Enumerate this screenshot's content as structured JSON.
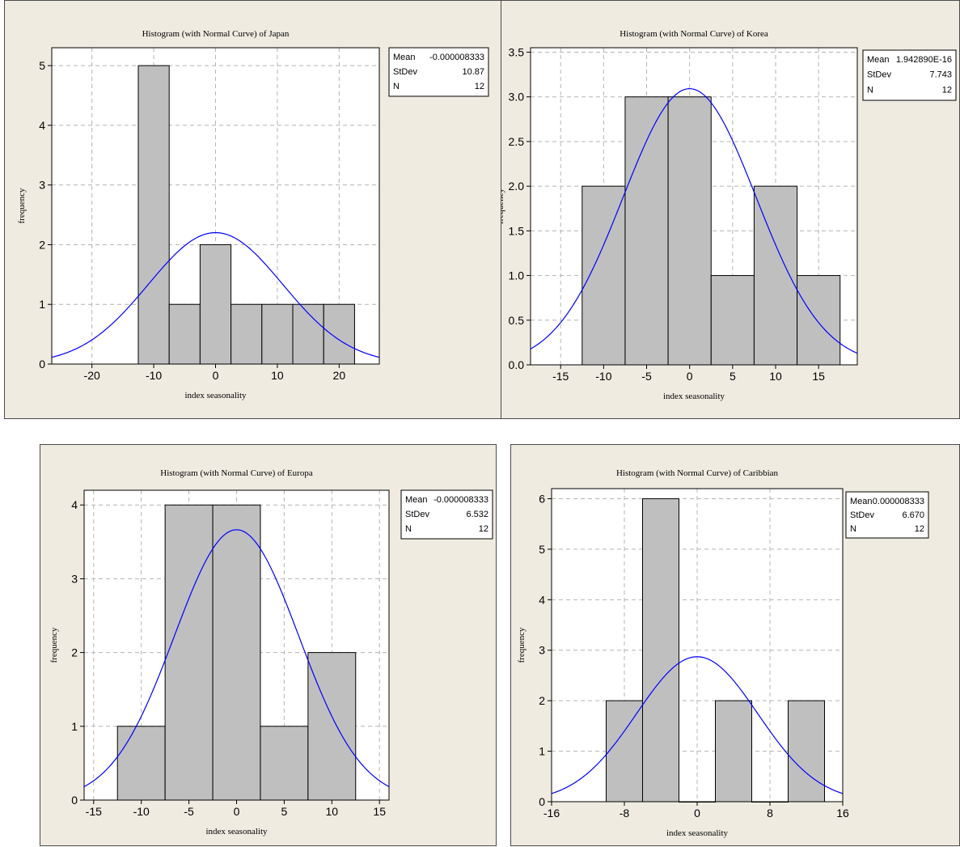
{
  "chart_data": [
    {
      "type": "bar",
      "title": "Histogram (with Normal Curve) of Japan",
      "xlabel": "index seasonality",
      "ylabel": "frequency",
      "xlim": [
        -26.5,
        26.5
      ],
      "ylim": [
        0,
        5.3
      ],
      "xticks": [
        -20,
        -10,
        0,
        10,
        20
      ],
      "yticks": [
        0,
        1,
        2,
        3,
        4,
        5
      ],
      "bins": [
        {
          "x0": -12.5,
          "x1": -7.5,
          "count": 5
        },
        {
          "x0": -7.5,
          "x1": -2.5,
          "count": 1
        },
        {
          "x0": -2.5,
          "x1": 2.5,
          "count": 2
        },
        {
          "x0": 2.5,
          "x1": 7.5,
          "count": 1
        },
        {
          "x0": 7.5,
          "x1": 12.5,
          "count": 1
        },
        {
          "x0": 12.5,
          "x1": 17.5,
          "count": 1
        },
        {
          "x0": 17.5,
          "x1": 22.5,
          "count": 1
        }
      ],
      "curve": {
        "mean": 0,
        "stdev": 10.87,
        "n": 12,
        "binwidth": 5
      },
      "stats": [
        {
          "label": "Mean",
          "value": "-0.000008333"
        },
        {
          "label": "StDev",
          "value": "10.87"
        },
        {
          "label": "N",
          "value": "12"
        }
      ],
      "grid": true,
      "legend_position": "top-right",
      "colors": {
        "bar": "#bfbfbf",
        "curve": "#0000ff",
        "grid": "#b4b4b4"
      }
    },
    {
      "type": "bar",
      "title": "Histogram (with Normal Curve) of Korea",
      "xlabel": "index seasonality",
      "ylabel": "frequency",
      "xlim": [
        -18.5,
        19.5
      ],
      "ylim": [
        0,
        3.55
      ],
      "xticks": [
        -15,
        -10,
        -5,
        0,
        5,
        10,
        15
      ],
      "yticks": [
        0.0,
        0.5,
        1.0,
        1.5,
        2.0,
        2.5,
        3.0,
        3.5
      ],
      "ytick_labels": [
        "0.0",
        "0.5",
        "1.0",
        "1.5",
        "2.0",
        "2.5",
        "3.0",
        "3.5"
      ],
      "bins": [
        {
          "x0": -12.5,
          "x1": -7.5,
          "count": 2
        },
        {
          "x0": -7.5,
          "x1": -2.5,
          "count": 3
        },
        {
          "x0": -2.5,
          "x1": 2.5,
          "count": 3
        },
        {
          "x0": 2.5,
          "x1": 7.5,
          "count": 1
        },
        {
          "x0": 7.5,
          "x1": 12.5,
          "count": 2
        },
        {
          "x0": 12.5,
          "x1": 17.5,
          "count": 1
        }
      ],
      "curve": {
        "mean": 0,
        "stdev": 7.743,
        "n": 12,
        "binwidth": 5
      },
      "stats": [
        {
          "label": "Mean",
          "value": "1.942890E-16"
        },
        {
          "label": "StDev",
          "value": "7.743"
        },
        {
          "label": "N",
          "value": "12"
        }
      ],
      "grid": true,
      "legend_position": "top-right",
      "colors": {
        "bar": "#bfbfbf",
        "curve": "#0000ff",
        "grid": "#b4b4b4"
      }
    },
    {
      "type": "bar",
      "title": "Histogram (with Normal Curve) of Europa",
      "xlabel": "index seasonality",
      "ylabel": "frequency",
      "xlim": [
        -16,
        16
      ],
      "ylim": [
        0,
        4.2
      ],
      "xticks": [
        -15,
        -10,
        -5,
        0,
        5,
        10,
        15
      ],
      "yticks": [
        0,
        1,
        2,
        3,
        4
      ],
      "bins": [
        {
          "x0": -12.5,
          "x1": -7.5,
          "count": 1
        },
        {
          "x0": -7.5,
          "x1": -2.5,
          "count": 4
        },
        {
          "x0": -2.5,
          "x1": 2.5,
          "count": 4
        },
        {
          "x0": 2.5,
          "x1": 7.5,
          "count": 1
        },
        {
          "x0": 7.5,
          "x1": 12.5,
          "count": 2
        }
      ],
      "curve": {
        "mean": 0,
        "stdev": 6.532,
        "n": 12,
        "binwidth": 5
      },
      "stats": [
        {
          "label": "Mean",
          "value": "-0.000008333"
        },
        {
          "label": "StDev",
          "value": "6.532"
        },
        {
          "label": "N",
          "value": "12"
        }
      ],
      "grid": true,
      "legend_position": "top-right",
      "colors": {
        "bar": "#bfbfbf",
        "curve": "#0000ff",
        "grid": "#b4b4b4"
      }
    },
    {
      "type": "bar",
      "title": "Histogram (with Normal Curve) of Caribbian",
      "xlabel": "index seasonality",
      "ylabel": "frequency",
      "xlim": [
        -16,
        16
      ],
      "ylim": [
        0,
        6.2
      ],
      "xticks": [
        -16,
        -8,
        0,
        8,
        16
      ],
      "yticks": [
        0,
        1,
        2,
        3,
        4,
        5,
        6
      ],
      "bins": [
        {
          "x0": -10,
          "x1": -6,
          "count": 2
        },
        {
          "x0": -6,
          "x1": -2,
          "count": 6
        },
        {
          "x0": -2,
          "x1": 2,
          "count": 0
        },
        {
          "x0": 2,
          "x1": 6,
          "count": 2
        },
        {
          "x0": 6,
          "x1": 10,
          "count": 0
        },
        {
          "x0": 10,
          "x1": 14,
          "count": 2
        }
      ],
      "curve": {
        "mean": 0,
        "stdev": 6.67,
        "n": 12,
        "binwidth": 4
      },
      "stats": [
        {
          "label": "Mean",
          "value": "0.000008333"
        },
        {
          "label": "StDev",
          "value": "6.670"
        },
        {
          "label": "N",
          "value": "12"
        }
      ],
      "grid": true,
      "legend_position": "top-right",
      "colors": {
        "bar": "#bfbfbf",
        "curve": "#0000ff",
        "grid": "#b4b4b4"
      }
    }
  ]
}
